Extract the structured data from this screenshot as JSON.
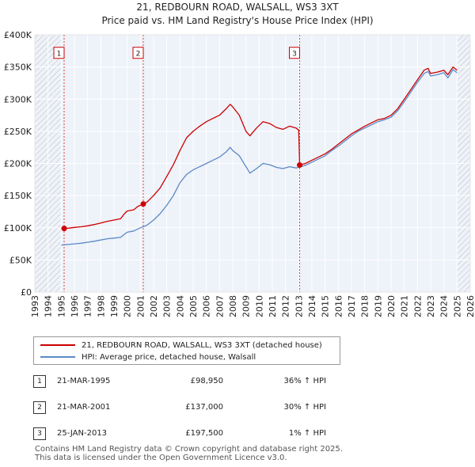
{
  "chart_data": {
    "type": "line",
    "title": "21, REDBOURN ROAD, WALSALL, WS3 3XT",
    "subtitle": "Price paid vs. HM Land Registry's House Price Index (HPI)",
    "xlabel": "",
    "ylabel": "",
    "xlim": [
      1993,
      2026
    ],
    "ylim": [
      0,
      400000
    ],
    "x_ticks": [
      1993,
      1994,
      1995,
      1996,
      1997,
      1998,
      1999,
      2000,
      2001,
      2002,
      2003,
      2004,
      2005,
      2006,
      2007,
      2008,
      2009,
      2010,
      2011,
      2012,
      2013,
      2014,
      2015,
      2016,
      2017,
      2018,
      2019,
      2020,
      2021,
      2022,
      2023,
      2024,
      2025,
      2026
    ],
    "x_tick_labels": [
      "1993",
      "1994",
      "1995",
      "1996",
      "1997",
      "1998",
      "1999",
      "2000",
      "2001",
      "2002",
      "2003",
      "2004",
      "2005",
      "2006",
      "2007",
      "2008",
      "2009",
      "2010",
      "2011",
      "2012",
      "2013",
      "2014",
      "2015",
      "2016",
      "2017",
      "2018",
      "2019",
      "2020",
      "2021",
      "2022",
      "2023",
      "2024",
      "2025",
      "2026"
    ],
    "y_ticks": [
      0,
      50000,
      100000,
      150000,
      200000,
      250000,
      300000,
      350000,
      400000
    ],
    "y_tick_labels": [
      "£0",
      "£50K",
      "£100K",
      "£150K",
      "£200K",
      "£250K",
      "£300K",
      "£350K",
      "£400K"
    ],
    "hatched_regions": [
      [
        1993,
        1995.0
      ],
      [
        2025.0,
        2026
      ]
    ],
    "series": [
      {
        "name": "21, REDBOURN ROAD, WALSALL, WS3 3XT (detached house)",
        "color": "#cc0000",
        "points": [
          [
            1995.22,
            98950
          ],
          [
            1995.6,
            99500
          ],
          [
            1996.0,
            100500
          ],
          [
            1996.5,
            101500
          ],
          [
            1997.0,
            103000
          ],
          [
            1997.5,
            105000
          ],
          [
            1998.0,
            107500
          ],
          [
            1998.5,
            110000
          ],
          [
            1999.0,
            112000
          ],
          [
            1999.5,
            114000
          ],
          [
            1999.8,
            122000
          ],
          [
            2000.0,
            126000
          ],
          [
            2000.5,
            128000
          ],
          [
            2000.8,
            133000
          ],
          [
            2001.22,
            137000
          ],
          [
            2001.5,
            140000
          ],
          [
            2002.0,
            150000
          ],
          [
            2002.5,
            162000
          ],
          [
            2003.0,
            180000
          ],
          [
            2003.5,
            198000
          ],
          [
            2004.0,
            220000
          ],
          [
            2004.5,
            240000
          ],
          [
            2005.0,
            250000
          ],
          [
            2005.5,
            258000
          ],
          [
            2006.0,
            265000
          ],
          [
            2006.5,
            270000
          ],
          [
            2007.0,
            275000
          ],
          [
            2007.5,
            285000
          ],
          [
            2007.8,
            292000
          ],
          [
            2008.0,
            288000
          ],
          [
            2008.5,
            275000
          ],
          [
            2009.0,
            250000
          ],
          [
            2009.3,
            243000
          ],
          [
            2009.8,
            255000
          ],
          [
            2010.3,
            265000
          ],
          [
            2010.8,
            262000
          ],
          [
            2011.3,
            256000
          ],
          [
            2011.8,
            253000
          ],
          [
            2012.3,
            258000
          ],
          [
            2012.8,
            255000
          ],
          [
            2013.0,
            252000
          ],
          [
            2013.07,
            197500
          ],
          [
            2013.5,
            200000
          ],
          [
            2014.0,
            205000
          ],
          [
            2014.5,
            210000
          ],
          [
            2015.0,
            215000
          ],
          [
            2015.5,
            222000
          ],
          [
            2016.0,
            230000
          ],
          [
            2016.5,
            238000
          ],
          [
            2017.0,
            246000
          ],
          [
            2017.5,
            252000
          ],
          [
            2018.0,
            258000
          ],
          [
            2018.5,
            263000
          ],
          [
            2019.0,
            268000
          ],
          [
            2019.5,
            270000
          ],
          [
            2020.0,
            275000
          ],
          [
            2020.5,
            285000
          ],
          [
            2021.0,
            300000
          ],
          [
            2021.5,
            315000
          ],
          [
            2022.0,
            330000
          ],
          [
            2022.5,
            345000
          ],
          [
            2022.8,
            348000
          ],
          [
            2023.0,
            340000
          ],
          [
            2023.5,
            342000
          ],
          [
            2024.0,
            345000
          ],
          [
            2024.3,
            338000
          ],
          [
            2024.7,
            350000
          ],
          [
            2025.0,
            345000
          ]
        ]
      },
      {
        "name": "HPI: Average price, detached house, Walsall",
        "color": "#5b8ac6",
        "points": [
          [
            1995.0,
            73000
          ],
          [
            1995.5,
            74000
          ],
          [
            1996.0,
            75000
          ],
          [
            1996.5,
            76000
          ],
          [
            1997.0,
            77500
          ],
          [
            1997.5,
            79000
          ],
          [
            1998.0,
            81000
          ],
          [
            1998.5,
            83000
          ],
          [
            1999.0,
            84000
          ],
          [
            1999.5,
            85000
          ],
          [
            1999.8,
            90000
          ],
          [
            2000.0,
            93000
          ],
          [
            2000.5,
            95000
          ],
          [
            2001.0,
            100000
          ],
          [
            2001.5,
            104000
          ],
          [
            2002.0,
            112000
          ],
          [
            2002.5,
            122000
          ],
          [
            2003.0,
            135000
          ],
          [
            2003.5,
            150000
          ],
          [
            2004.0,
            170000
          ],
          [
            2004.5,
            183000
          ],
          [
            2005.0,
            190000
          ],
          [
            2005.5,
            195000
          ],
          [
            2006.0,
            200000
          ],
          [
            2006.5,
            205000
          ],
          [
            2007.0,
            210000
          ],
          [
            2007.5,
            218000
          ],
          [
            2007.8,
            225000
          ],
          [
            2008.0,
            220000
          ],
          [
            2008.5,
            212000
          ],
          [
            2009.0,
            195000
          ],
          [
            2009.3,
            185000
          ],
          [
            2009.8,
            192000
          ],
          [
            2010.3,
            200000
          ],
          [
            2010.8,
            198000
          ],
          [
            2011.3,
            194000
          ],
          [
            2011.8,
            192000
          ],
          [
            2012.3,
            195000
          ],
          [
            2012.8,
            193000
          ],
          [
            2013.0,
            194000
          ],
          [
            2013.5,
            197000
          ],
          [
            2014.0,
            202000
          ],
          [
            2014.5,
            207000
          ],
          [
            2015.0,
            212000
          ],
          [
            2015.5,
            220000
          ],
          [
            2016.0,
            227000
          ],
          [
            2016.5,
            235000
          ],
          [
            2017.0,
            243000
          ],
          [
            2017.5,
            250000
          ],
          [
            2018.0,
            255000
          ],
          [
            2018.5,
            260000
          ],
          [
            2019.0,
            265000
          ],
          [
            2019.5,
            268000
          ],
          [
            2020.0,
            272000
          ],
          [
            2020.5,
            282000
          ],
          [
            2021.0,
            296000
          ],
          [
            2021.5,
            311000
          ],
          [
            2022.0,
            326000
          ],
          [
            2022.5,
            340000
          ],
          [
            2022.8,
            343000
          ],
          [
            2023.0,
            336000
          ],
          [
            2023.5,
            338000
          ],
          [
            2024.0,
            341000
          ],
          [
            2024.3,
            333000
          ],
          [
            2024.7,
            346000
          ],
          [
            2025.0,
            341000
          ]
        ]
      }
    ],
    "markers": [
      {
        "label": "1",
        "x": 1995.22,
        "y": 98950
      },
      {
        "label": "2",
        "x": 2001.22,
        "y": 137000
      },
      {
        "label": "3",
        "x": 2013.07,
        "y": 197500
      }
    ],
    "marker_label_value": 372000
  },
  "legend": {
    "property_label": "21, REDBOURN ROAD, WALSALL, WS3 3XT (detached house)",
    "hpi_label": "HPI: Average price, detached house, Walsall"
  },
  "sales": [
    {
      "num": "1",
      "date": "21-MAR-1995",
      "price": "£98,950",
      "hpi": "36% ↑ HPI"
    },
    {
      "num": "2",
      "date": "21-MAR-2001",
      "price": "£137,000",
      "hpi": "30% ↑ HPI"
    },
    {
      "num": "3",
      "date": "25-JAN-2013",
      "price": "£197,500",
      "hpi": "1% ↑ HPI"
    }
  ],
  "footer": {
    "line1": "Contains HM Land Registry data © Crown copyright and database right 2025.",
    "line2": "This data is licensed under the Open Government Licence v3.0."
  }
}
